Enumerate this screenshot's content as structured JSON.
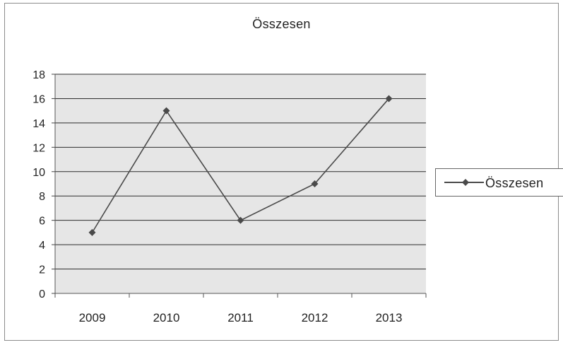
{
  "chart_data": {
    "type": "line",
    "title": "Összesen",
    "xlabel": "",
    "ylabel": "",
    "categories": [
      "2009",
      "2010",
      "2011",
      "2012",
      "2013"
    ],
    "series": [
      {
        "name": "Összesen",
        "values": [
          5,
          15,
          6,
          9,
          16
        ],
        "color": "#4a4a4a",
        "marker": "diamond"
      }
    ],
    "ylim": [
      0,
      18
    ],
    "yticks": [
      0,
      2,
      4,
      6,
      8,
      10,
      12,
      14,
      16,
      18
    ],
    "grid": true,
    "plot_background": "#e6e6e6",
    "legend": "right"
  }
}
